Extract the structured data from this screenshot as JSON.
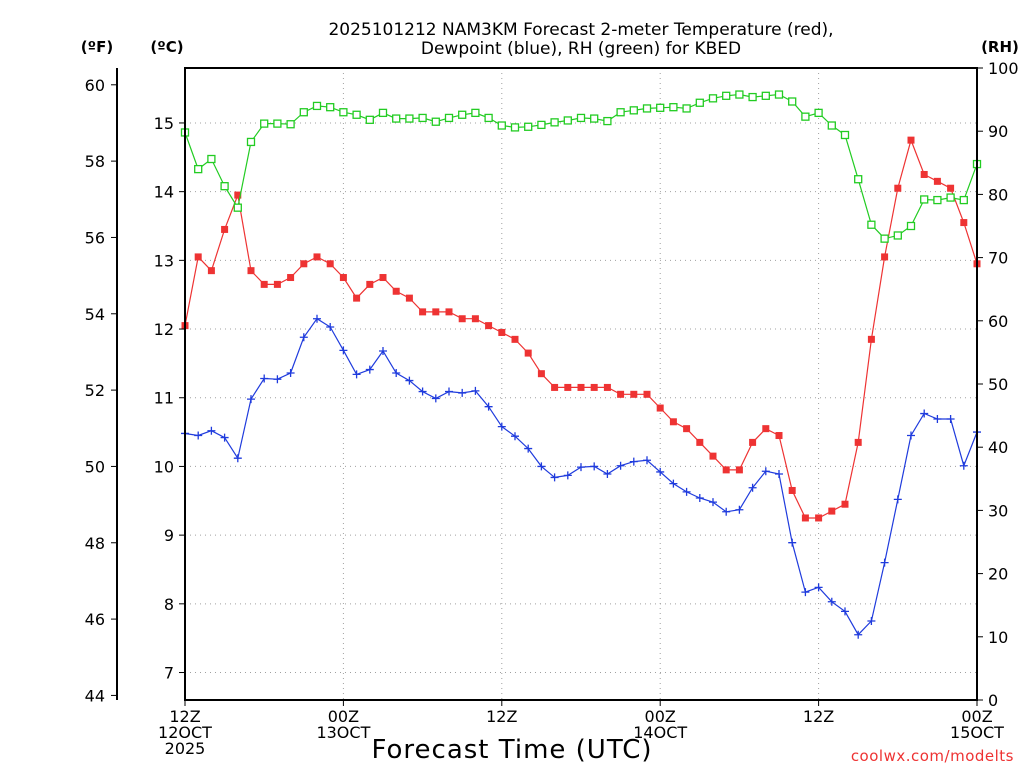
{
  "chart_data": {
    "type": "line",
    "title_lines": [
      "2025101212 NAM3KM Forecast 2-meter Temperature (red),",
      "Dewpoint (blue), RH (green) for KBED"
    ],
    "xlabel": "Forecast Time (UTC)",
    "credit": "coolwx.com/modelts",
    "x_range_hours": [
      0,
      60
    ],
    "x_ticks": [
      {
        "hour": 0,
        "lines": [
          "12Z",
          "12OCT",
          "2025"
        ]
      },
      {
        "hour": 12,
        "lines": [
          "00Z",
          "13OCT"
        ]
      },
      {
        "hour": 24,
        "lines": [
          "12Z"
        ]
      },
      {
        "hour": 36,
        "lines": [
          "00Z",
          "14OCT"
        ]
      },
      {
        "hour": 48,
        "lines": [
          "12Z"
        ]
      },
      {
        "hour": 60,
        "lines": [
          "00Z",
          "15OCT"
        ]
      }
    ],
    "axes": {
      "celsius": {
        "unit_label": "(ºC)",
        "range": [
          6.6,
          15.8
        ],
        "ticks": [
          7,
          8,
          9,
          10,
          11,
          12,
          13,
          14,
          15
        ]
      },
      "fahrenheit": {
        "unit_label": "(ºF)",
        "range": [
          43.88,
          60.44
        ],
        "ticks": [
          44,
          46,
          48,
          50,
          52,
          54,
          56,
          58,
          60
        ]
      },
      "rh": {
        "unit_label": "(RH)",
        "range": [
          0,
          100
        ],
        "ticks": [
          0,
          10,
          20,
          30,
          40,
          50,
          60,
          70,
          80,
          90,
          100
        ]
      }
    },
    "series": [
      {
        "name": "2-meter Temperature",
        "color": "#ee3333",
        "marker": "filled-square",
        "axis": "celsius",
        "x": [
          0,
          1,
          2,
          3,
          4,
          5,
          6,
          7,
          8,
          9,
          10,
          11,
          12,
          13,
          14,
          15,
          16,
          17,
          18,
          19,
          20,
          21,
          22,
          23,
          24,
          25,
          26,
          27,
          28,
          29,
          30,
          31,
          32,
          33,
          34,
          35,
          36,
          37,
          38,
          39,
          40,
          41,
          42,
          43,
          44,
          45,
          46,
          47,
          48,
          49,
          50,
          51,
          52,
          53,
          54,
          55,
          56,
          57,
          58,
          59,
          60
        ],
        "values": [
          12.05,
          13.05,
          12.85,
          13.45,
          13.95,
          12.85,
          12.65,
          12.65,
          12.75,
          12.95,
          13.05,
          12.95,
          12.75,
          12.45,
          12.65,
          12.75,
          12.55,
          12.45,
          12.25,
          12.25,
          12.25,
          12.15,
          12.15,
          12.05,
          11.95,
          11.85,
          11.65,
          11.35,
          11.15,
          11.15,
          11.15,
          11.15,
          11.15,
          11.05,
          11.05,
          11.05,
          10.85,
          10.65,
          10.55,
          10.35,
          10.15,
          9.95,
          9.95,
          10.35,
          10.55,
          10.45,
          9.65,
          9.25,
          9.25,
          9.35,
          9.45,
          10.35,
          11.85,
          13.05,
          14.05,
          14.75,
          14.25,
          14.15,
          14.05,
          13.55,
          12.95
        ]
      },
      {
        "name": "Dewpoint",
        "color": "#1f3bdd",
        "marker": "plus",
        "axis": "celsius",
        "x": [
          0,
          1,
          2,
          3,
          4,
          5,
          6,
          7,
          8,
          9,
          10,
          11,
          12,
          13,
          14,
          15,
          16,
          17,
          18,
          19,
          20,
          21,
          22,
          23,
          24,
          25,
          26,
          27,
          28,
          29,
          30,
          31,
          32,
          33,
          34,
          35,
          36,
          37,
          38,
          39,
          40,
          41,
          42,
          43,
          44,
          45,
          46,
          47,
          48,
          49,
          50,
          51,
          52,
          53,
          54,
          55,
          56,
          57,
          58,
          59,
          60
        ],
        "values": [
          10.48,
          10.45,
          10.52,
          10.42,
          10.12,
          10.98,
          11.28,
          11.27,
          11.36,
          11.88,
          12.15,
          12.03,
          11.69,
          11.34,
          11.41,
          11.68,
          11.36,
          11.25,
          11.09,
          10.99,
          11.09,
          11.07,
          11.1,
          10.87,
          10.58,
          10.44,
          10.26,
          10.0,
          9.84,
          9.87,
          9.99,
          10.0,
          9.89,
          10.01,
          10.07,
          10.09,
          9.92,
          9.75,
          9.63,
          9.54,
          9.48,
          9.34,
          9.37,
          9.69,
          9.93,
          9.89,
          8.89,
          8.17,
          8.24,
          8.03,
          7.89,
          7.55,
          7.75,
          8.6,
          9.52,
          10.45,
          10.77,
          10.69,
          10.69,
          10.01,
          10.5
        ]
      },
      {
        "name": "RH",
        "color": "#22cc22",
        "marker": "open-square",
        "axis": "rh",
        "x": [
          0,
          1,
          2,
          3,
          4,
          5,
          6,
          7,
          8,
          9,
          10,
          11,
          12,
          13,
          14,
          15,
          16,
          17,
          18,
          19,
          20,
          21,
          22,
          23,
          24,
          25,
          26,
          27,
          28,
          29,
          30,
          31,
          32,
          33,
          34,
          35,
          36,
          37,
          38,
          39,
          40,
          41,
          42,
          43,
          44,
          45,
          46,
          47,
          48,
          49,
          50,
          51,
          52,
          53,
          54,
          55,
          56,
          57,
          58,
          59,
          60
        ],
        "values": [
          89.8,
          84.0,
          85.6,
          81.3,
          77.9,
          88.3,
          91.2,
          91.2,
          91.1,
          93.0,
          94.0,
          93.8,
          93.0,
          92.6,
          91.8,
          92.9,
          92.0,
          92.0,
          92.1,
          91.5,
          92.1,
          92.6,
          92.9,
          92.1,
          90.9,
          90.6,
          90.7,
          91.0,
          91.4,
          91.7,
          92.1,
          92.0,
          91.6,
          93.0,
          93.3,
          93.6,
          93.7,
          93.8,
          93.6,
          94.5,
          95.2,
          95.6,
          95.8,
          95.4,
          95.6,
          95.8,
          94.7,
          92.3,
          92.9,
          90.9,
          89.4,
          82.4,
          75.2,
          73.0,
          73.5,
          75.0,
          79.2,
          79.1,
          79.5,
          79.1,
          84.8
        ]
      }
    ]
  }
}
